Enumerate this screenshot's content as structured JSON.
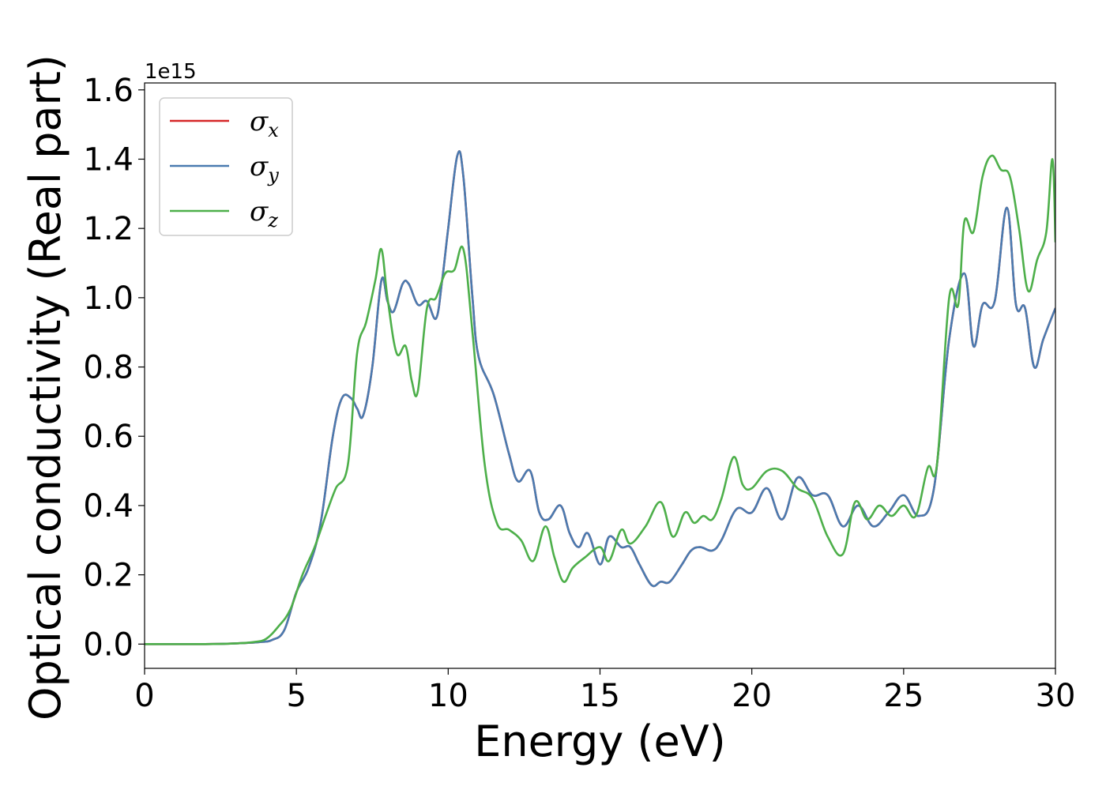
{
  "chart_data": {
    "type": "line",
    "xlabel": "Energy (eV)",
    "ylabel": "Optical conductivity (Real part)",
    "offset_text": "1e15",
    "xlim": [
      0,
      30
    ],
    "ylim": [
      -0.07,
      1.62
    ],
    "y_scale": 1000000000000000.0,
    "x_ticks": [
      0,
      5,
      10,
      15,
      20,
      25,
      30
    ],
    "x_tick_labels": [
      "0",
      "5",
      "10",
      "15",
      "20",
      "25",
      "30"
    ],
    "y_ticks": [
      0.0,
      0.2,
      0.4,
      0.6,
      0.8,
      1.0,
      1.2,
      1.4,
      1.6
    ],
    "y_tick_labels": [
      "0.0",
      "0.2",
      "0.4",
      "0.6",
      "0.8",
      "1.0",
      "1.2",
      "1.4",
      "1.6"
    ],
    "grid": false,
    "legend_position": "top-left",
    "series": [
      {
        "name": "σx",
        "symbol": "σ",
        "subscript": "x",
        "color": "#d62728",
        "x": [
          0,
          2,
          3,
          3.8,
          4.2,
          4.6,
          5.0,
          5.4,
          5.8,
          6.2,
          6.5,
          6.8,
          7.0,
          7.2,
          7.5,
          7.8,
          8.0,
          8.2,
          8.5,
          8.7,
          9.0,
          9.3,
          9.6,
          9.8,
          10.0,
          10.3,
          10.5,
          10.8,
          11.0,
          11.5,
          12.0,
          12.3,
          12.7,
          13.0,
          13.3,
          13.7,
          14.0,
          14.3,
          14.6,
          15.0,
          15.3,
          15.7,
          16.0,
          16.3,
          16.7,
          17.0,
          17.3,
          17.7,
          18.0,
          18.3,
          18.7,
          19.0,
          19.5,
          20.0,
          20.5,
          21.0,
          21.5,
          22.0,
          22.5,
          23.0,
          23.5,
          24.0,
          24.5,
          25.0,
          25.5,
          26.0,
          26.5,
          27.0,
          27.3,
          27.6,
          28.0,
          28.4,
          28.7,
          29.0,
          29.3,
          29.6,
          30.0
        ],
        "y": [
          0,
          0,
          0.002,
          0.006,
          0.012,
          0.04,
          0.15,
          0.22,
          0.35,
          0.6,
          0.71,
          0.71,
          0.68,
          0.66,
          0.8,
          1.05,
          0.99,
          0.96,
          1.04,
          1.04,
          0.98,
          0.99,
          0.94,
          1.05,
          1.2,
          1.41,
          1.35,
          1.0,
          0.83,
          0.72,
          0.55,
          0.47,
          0.5,
          0.38,
          0.36,
          0.4,
          0.32,
          0.28,
          0.32,
          0.23,
          0.31,
          0.28,
          0.28,
          0.23,
          0.17,
          0.18,
          0.18,
          0.23,
          0.27,
          0.28,
          0.27,
          0.3,
          0.39,
          0.38,
          0.45,
          0.36,
          0.48,
          0.43,
          0.43,
          0.34,
          0.4,
          0.34,
          0.38,
          0.43,
          0.37,
          0.45,
          0.88,
          1.07,
          0.86,
          0.98,
          0.99,
          1.26,
          0.98,
          0.97,
          0.8,
          0.88,
          0.97
        ]
      },
      {
        "name": "σy",
        "symbol": "σ",
        "subscript": "y",
        "color": "#4a7bb0",
        "x": [
          0,
          2,
          3,
          3.8,
          4.2,
          4.6,
          5.0,
          5.4,
          5.8,
          6.2,
          6.5,
          6.8,
          7.0,
          7.2,
          7.5,
          7.8,
          8.0,
          8.2,
          8.5,
          8.7,
          9.0,
          9.3,
          9.6,
          9.8,
          10.0,
          10.3,
          10.5,
          10.8,
          11.0,
          11.5,
          12.0,
          12.3,
          12.7,
          13.0,
          13.3,
          13.7,
          14.0,
          14.3,
          14.6,
          15.0,
          15.3,
          15.7,
          16.0,
          16.3,
          16.7,
          17.0,
          17.3,
          17.7,
          18.0,
          18.3,
          18.7,
          19.0,
          19.5,
          20.0,
          20.5,
          21.0,
          21.5,
          22.0,
          22.5,
          23.0,
          23.5,
          24.0,
          24.5,
          25.0,
          25.5,
          26.0,
          26.5,
          27.0,
          27.3,
          27.6,
          28.0,
          28.4,
          28.7,
          29.0,
          29.3,
          29.6,
          30.0
        ],
        "y": [
          0,
          0,
          0.002,
          0.006,
          0.012,
          0.04,
          0.15,
          0.22,
          0.35,
          0.6,
          0.71,
          0.71,
          0.68,
          0.66,
          0.8,
          1.05,
          0.99,
          0.96,
          1.04,
          1.04,
          0.98,
          0.99,
          0.94,
          1.05,
          1.2,
          1.41,
          1.35,
          1.0,
          0.83,
          0.72,
          0.55,
          0.47,
          0.5,
          0.38,
          0.36,
          0.4,
          0.32,
          0.28,
          0.32,
          0.23,
          0.31,
          0.28,
          0.28,
          0.23,
          0.17,
          0.18,
          0.18,
          0.23,
          0.27,
          0.28,
          0.27,
          0.3,
          0.39,
          0.38,
          0.45,
          0.36,
          0.48,
          0.43,
          0.43,
          0.34,
          0.4,
          0.34,
          0.38,
          0.43,
          0.37,
          0.45,
          0.88,
          1.07,
          0.86,
          0.98,
          0.99,
          1.26,
          0.98,
          0.97,
          0.8,
          0.88,
          0.97
        ]
      },
      {
        "name": "σz",
        "symbol": "σ",
        "subscript": "z",
        "color": "#4daf4a",
        "x": [
          0,
          2,
          3,
          3.6,
          4.0,
          4.4,
          4.8,
          5.2,
          5.6,
          6.0,
          6.3,
          6.7,
          7.0,
          7.3,
          7.6,
          7.8,
          8.0,
          8.3,
          8.6,
          8.8,
          9.0,
          9.3,
          9.6,
          9.9,
          10.2,
          10.5,
          10.8,
          11.2,
          11.6,
          12.0,
          12.4,
          12.8,
          13.2,
          13.5,
          13.8,
          14.1,
          14.5,
          15.0,
          15.3,
          15.7,
          16.0,
          16.5,
          17.0,
          17.4,
          17.8,
          18.1,
          18.4,
          18.7,
          19.0,
          19.4,
          19.7,
          20.0,
          20.5,
          21.0,
          21.5,
          22.0,
          22.5,
          23.0,
          23.4,
          23.8,
          24.2,
          24.6,
          25.0,
          25.4,
          25.8,
          26.1,
          26.5,
          26.8,
          27.0,
          27.3,
          27.6,
          27.9,
          28.2,
          28.5,
          28.8,
          29.1,
          29.4,
          29.7,
          29.9,
          30.0
        ],
        "y": [
          0,
          0,
          0.002,
          0.006,
          0.015,
          0.05,
          0.1,
          0.2,
          0.28,
          0.38,
          0.45,
          0.52,
          0.84,
          0.93,
          1.05,
          1.14,
          1.0,
          0.84,
          0.86,
          0.76,
          0.73,
          0.97,
          1.0,
          1.07,
          1.08,
          1.14,
          0.9,
          0.52,
          0.35,
          0.33,
          0.3,
          0.24,
          0.34,
          0.25,
          0.18,
          0.22,
          0.25,
          0.28,
          0.24,
          0.33,
          0.29,
          0.34,
          0.41,
          0.31,
          0.38,
          0.35,
          0.37,
          0.36,
          0.42,
          0.54,
          0.46,
          0.45,
          0.5,
          0.5,
          0.45,
          0.42,
          0.31,
          0.26,
          0.41,
          0.36,
          0.4,
          0.37,
          0.4,
          0.37,
          0.51,
          0.52,
          1.0,
          0.98,
          1.22,
          1.19,
          1.35,
          1.41,
          1.37,
          1.35,
          1.2,
          1.02,
          1.11,
          1.19,
          1.4,
          1.16
        ]
      }
    ]
  }
}
